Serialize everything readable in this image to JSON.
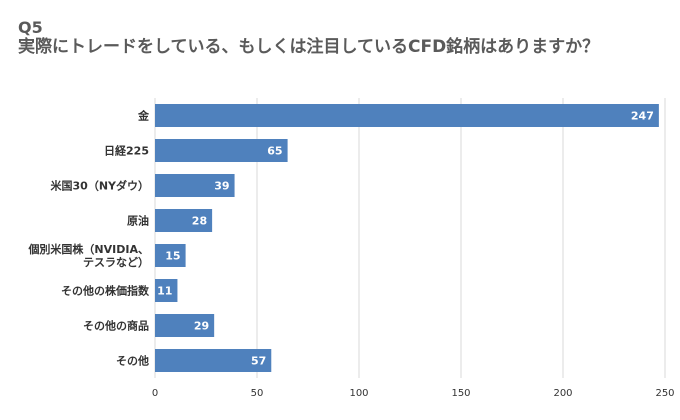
{
  "header": {
    "q_number": "Q5",
    "question": "実際にトレードをしている、もしくは注目しているCFD銘柄はありますか？"
  },
  "chart_data": {
    "type": "bar",
    "orientation": "horizontal",
    "categories": [
      [
        "金"
      ],
      [
        "日経225"
      ],
      [
        "米国30（NYダウ）"
      ],
      [
        "原油"
      ],
      [
        "個別米国株（NVIDIA、",
        "テスラなど）"
      ],
      [
        "その他の株価指数"
      ],
      [
        "その他の商品"
      ],
      [
        "その他"
      ]
    ],
    "values": [
      247,
      65,
      39,
      28,
      15,
      11,
      29,
      57
    ],
    "xlim": [
      0,
      250
    ],
    "xticks": [
      0,
      50,
      100,
      150,
      200,
      250
    ],
    "grid": true,
    "bar_color": "#4f81bd",
    "grid_color": "#d9d9d9"
  }
}
